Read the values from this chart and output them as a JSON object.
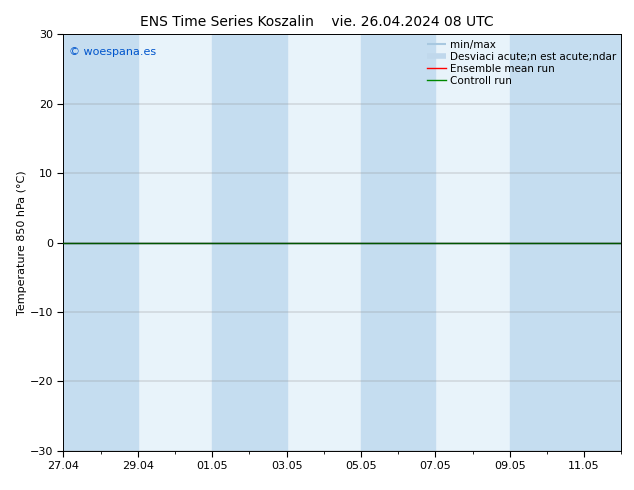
{
  "title1": "ENS Time Series Koszalin",
  "title2": "vie. 26.04.2024 08 UTC",
  "ylabel": "Temperature 850 hPa (°C)",
  "ylim": [
    -30,
    30
  ],
  "yticks": [
    -30,
    -20,
    -10,
    0,
    10,
    20,
    30
  ],
  "xlim": [
    0,
    15
  ],
  "x_tick_labels": [
    "27.04",
    "29.04",
    "01.05",
    "03.05",
    "05.05",
    "07.05",
    "09.05",
    "11.05"
  ],
  "x_tick_positions": [
    0,
    2,
    4,
    6,
    8,
    10,
    12,
    14
  ],
  "shaded_bands": [
    {
      "x_start": 0,
      "x_end": 2
    },
    {
      "x_start": 4,
      "x_end": 6
    },
    {
      "x_start": 8,
      "x_end": 10
    },
    {
      "x_start": 12,
      "x_end": 15
    }
  ],
  "plot_bg_color": "#e8f3fa",
  "shade_color": "#c5ddf0",
  "background_color": "#ffffff",
  "zero_line_color": "#000000",
  "watermark": "© woespana.es",
  "watermark_color": "#0055cc",
  "legend_label_1": "min/max",
  "legend_label_2": "Desviaci acute;n est acute;ndar",
  "legend_label_3": "Ensemble mean run",
  "legend_label_4": "Controll run",
  "legend_color_1": "#a8c8e0",
  "legend_color_2": "#c0d8ec",
  "legend_color_3": "#ff0000",
  "legend_color_4": "#008800",
  "controll_run_color": "#005500",
  "title_fontsize": 10,
  "tick_fontsize": 8,
  "label_fontsize": 8,
  "legend_fontsize": 7.5
}
